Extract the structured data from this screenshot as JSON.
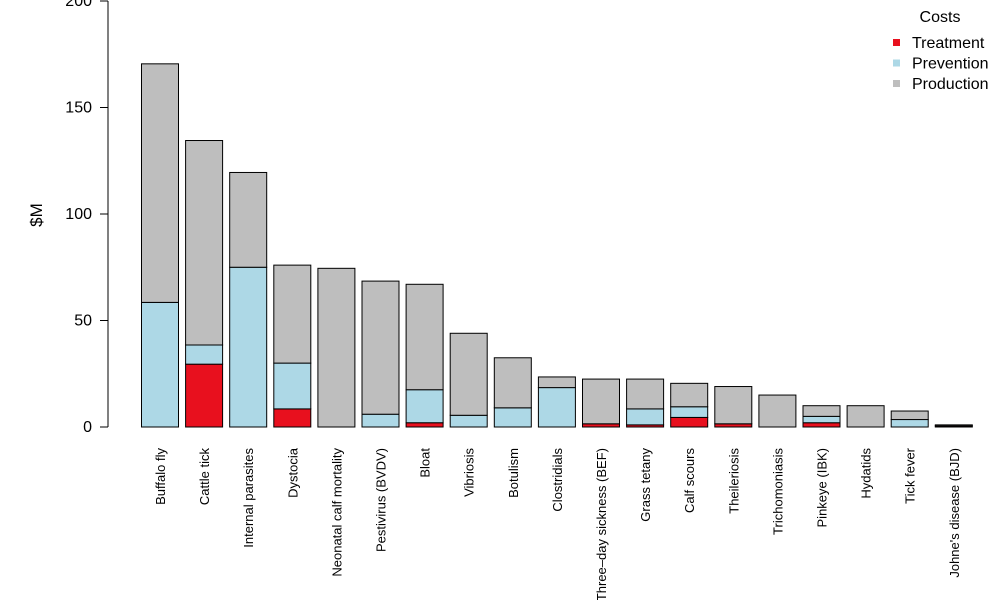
{
  "chart_data": {
    "type": "bar",
    "stacked": true,
    "title": "",
    "xlabel": "",
    "ylabel": "$M",
    "ylim": [
      0,
      200
    ],
    "yticks": [
      0,
      50,
      100,
      150,
      200
    ],
    "grid": false,
    "legend": {
      "title": "Costs",
      "position": "top-right"
    },
    "categories": [
      "Buffalo fly",
      "Cattle tick",
      "Internal parasites",
      "Dystocia",
      "Neonatal calf mortality",
      "Pestivirus (BVDV)",
      "Bloat",
      "Vibriosis",
      "Botulism",
      "Clostridials",
      "Three–day sickness (BEF)",
      "Grass tetany",
      "Calf scours",
      "Theileriosis",
      "Trichomoniasis",
      "Pinkeye (IBK)",
      "Hydatids",
      "Tick fever",
      "Johne's disease (BJD)"
    ],
    "series": [
      {
        "name": "Treatment",
        "color": "#e8101e",
        "values": [
          0,
          29.5,
          0,
          8.5,
          0,
          0,
          2,
          0,
          0,
          0,
          1.5,
          1,
          4.5,
          1.5,
          0,
          2,
          0,
          0,
          0.5
        ]
      },
      {
        "name": "Prevention",
        "color": "#add8e6",
        "values": [
          58.5,
          9,
          75,
          21.5,
          0,
          6,
          15.5,
          5.5,
          9,
          18.5,
          0,
          7.5,
          5,
          0,
          0,
          3,
          0,
          3.5,
          0
        ]
      },
      {
        "name": "Production",
        "color": "#bebebe",
        "values": [
          112,
          96,
          44.5,
          46,
          74.5,
          62.5,
          49.5,
          38.5,
          23.5,
          5,
          21,
          14,
          11,
          17.5,
          15,
          5,
          10,
          4,
          0.5
        ]
      }
    ]
  }
}
